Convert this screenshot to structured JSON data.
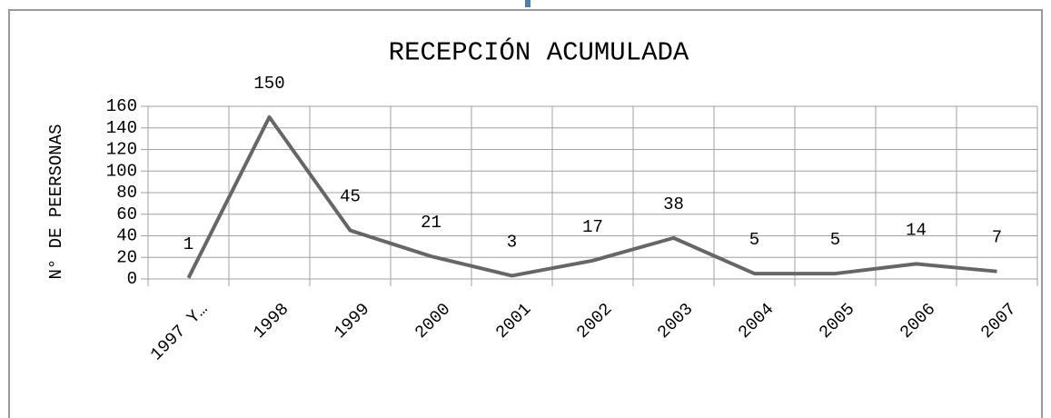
{
  "chart_data": {
    "type": "line",
    "title": "RECEPCIÓN ACUMULADA",
    "y_label": "N° DE PEERSONAS",
    "categories": [
      "1997 Y…",
      "1998",
      "1999",
      "2000",
      "2001",
      "2002",
      "2003",
      "2004",
      "2005",
      "2006",
      "2007"
    ],
    "series": [
      {
        "name": null,
        "color": "#666666",
        "values": [
          1,
          150,
          45,
          21,
          3,
          17,
          38,
          5,
          5,
          14,
          7
        ]
      }
    ],
    "ylim": [
      0,
      160
    ],
    "yticks": [
      0,
      20,
      40,
      60,
      80,
      100,
      120,
      140,
      160
    ],
    "grid": true
  }
}
